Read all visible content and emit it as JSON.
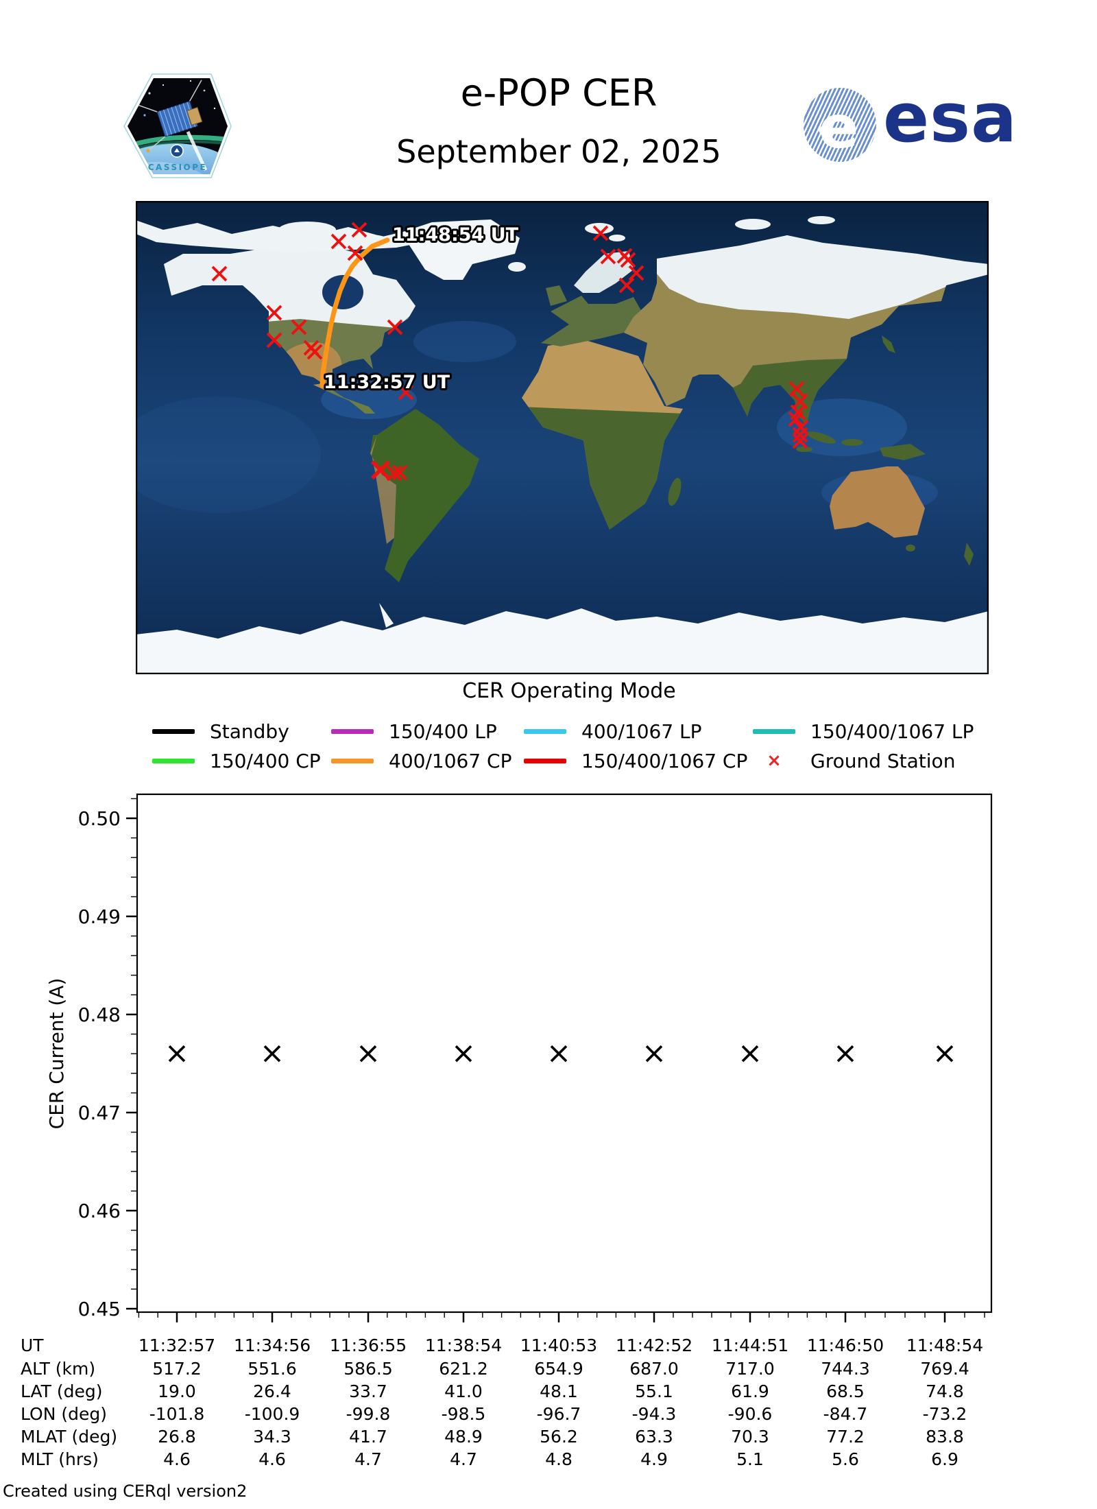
{
  "header": {
    "title": "e-POP CER",
    "date": "September 02, 2025",
    "patch_label": "CASSIOPE",
    "esa_label": "esa"
  },
  "map": {
    "start_label": "11:32:57 UT",
    "end_label": "11:48:54 UT",
    "trajectory_color": "#ff9517",
    "ground_station_color": "#ee1111",
    "trajectory": [
      [
        367,
        57
      ],
      [
        345,
        66
      ],
      [
        329,
        80
      ],
      [
        316,
        95
      ],
      [
        306,
        112
      ],
      [
        298,
        131
      ],
      [
        291,
        154
      ],
      [
        285,
        179
      ],
      [
        280,
        206
      ],
      [
        276,
        231
      ],
      [
        273,
        251
      ],
      [
        272,
        269
      ]
    ],
    "ground_stations": [
      [
        122,
        106
      ],
      [
        202,
        163
      ],
      [
        238,
        184
      ],
      [
        202,
        203
      ],
      [
        256,
        214
      ],
      [
        261,
        220
      ],
      [
        378,
        184
      ],
      [
        394,
        279
      ],
      [
        326,
        42
      ],
      [
        296,
        59
      ],
      [
        320,
        76
      ],
      [
        678,
        47
      ],
      [
        689,
        81
      ],
      [
        713,
        80
      ],
      [
        718,
        86
      ],
      [
        730,
        105
      ],
      [
        716,
        123
      ],
      [
        964,
        274
      ],
      [
        969,
        292
      ],
      [
        966,
        308
      ],
      [
        963,
        318
      ],
      [
        970,
        330
      ],
      [
        969,
        341
      ],
      [
        969,
        350
      ],
      [
        357,
        392,
        1
      ],
      [
        377,
        397
      ],
      [
        385,
        396
      ]
    ]
  },
  "legend": {
    "title": "CER Operating Mode",
    "items": [
      {
        "label": "Standby",
        "color": "#000000",
        "type": "line"
      },
      {
        "label": "150/400 LP",
        "color": "#b92cb9",
        "type": "line"
      },
      {
        "label": "400/1067 LP",
        "color": "#3ac8ef",
        "type": "line"
      },
      {
        "label": "150/400/1067 LP",
        "color": "#1dbfb4",
        "type": "line"
      },
      {
        "label": "150/400 CP",
        "color": "#2fe52f",
        "type": "line"
      },
      {
        "label": "400/1067 CP",
        "color": "#f79428",
        "type": "line"
      },
      {
        "label": "150/400/1067 CP",
        "color": "#e60000",
        "type": "line"
      },
      {
        "label": "Ground Station",
        "color": "#ee2222",
        "type": "x",
        "marker": "×"
      }
    ]
  },
  "chart_data": {
    "type": "scatter",
    "title": "",
    "xlabel": "",
    "ylabel": "CER Current (A)",
    "ylim": [
      0.4497,
      0.5025
    ],
    "yticks": [
      "0.45",
      "0.46",
      "0.47",
      "0.48",
      "0.49",
      "0.50"
    ],
    "ytick_values": [
      0.45,
      0.46,
      0.47,
      0.48,
      0.49,
      0.5
    ],
    "minor_step": 0.002,
    "marker": "x",
    "marker_color": "#000000",
    "x": [
      "11:32:57",
      "11:34:56",
      "11:36:55",
      "11:38:54",
      "11:40:53",
      "11:42:52",
      "11:44:51",
      "11:46:50",
      "11:48:54"
    ],
    "values": [
      0.476,
      0.476,
      0.476,
      0.476,
      0.476,
      0.476,
      0.476,
      0.476,
      0.476
    ],
    "grid": false,
    "legend_position": "above-chart"
  },
  "table": {
    "rows": [
      {
        "label": "UT",
        "values": [
          "11:32:57",
          "11:34:56",
          "11:36:55",
          "11:38:54",
          "11:40:53",
          "11:42:52",
          "11:44:51",
          "11:46:50",
          "11:48:54"
        ]
      },
      {
        "label": "ALT (km)",
        "values": [
          "517.2",
          "551.6",
          "586.5",
          "621.2",
          "654.9",
          "687.0",
          "717.0",
          "744.3",
          "769.4"
        ]
      },
      {
        "label": "LAT (deg)",
        "values": [
          "19.0",
          "26.4",
          "33.7",
          "41.0",
          "48.1",
          "55.1",
          "61.9",
          "68.5",
          "74.8"
        ]
      },
      {
        "label": "LON (deg)",
        "values": [
          "-101.8",
          "-100.9",
          "-99.8",
          "-98.5",
          "-96.7",
          "-94.3",
          "-90.6",
          "-84.7",
          "-73.2"
        ]
      },
      {
        "label": "MLAT (deg)",
        "values": [
          "26.8",
          "34.3",
          "41.7",
          "48.9",
          "56.2",
          "63.3",
          "70.3",
          "77.2",
          "83.8"
        ]
      },
      {
        "label": "MLT (hrs)",
        "values": [
          "4.6",
          "4.6",
          "4.7",
          "4.7",
          "4.8",
          "4.9",
          "5.1",
          "5.6",
          "6.9"
        ]
      }
    ]
  },
  "footer": "Created using CERql version2"
}
